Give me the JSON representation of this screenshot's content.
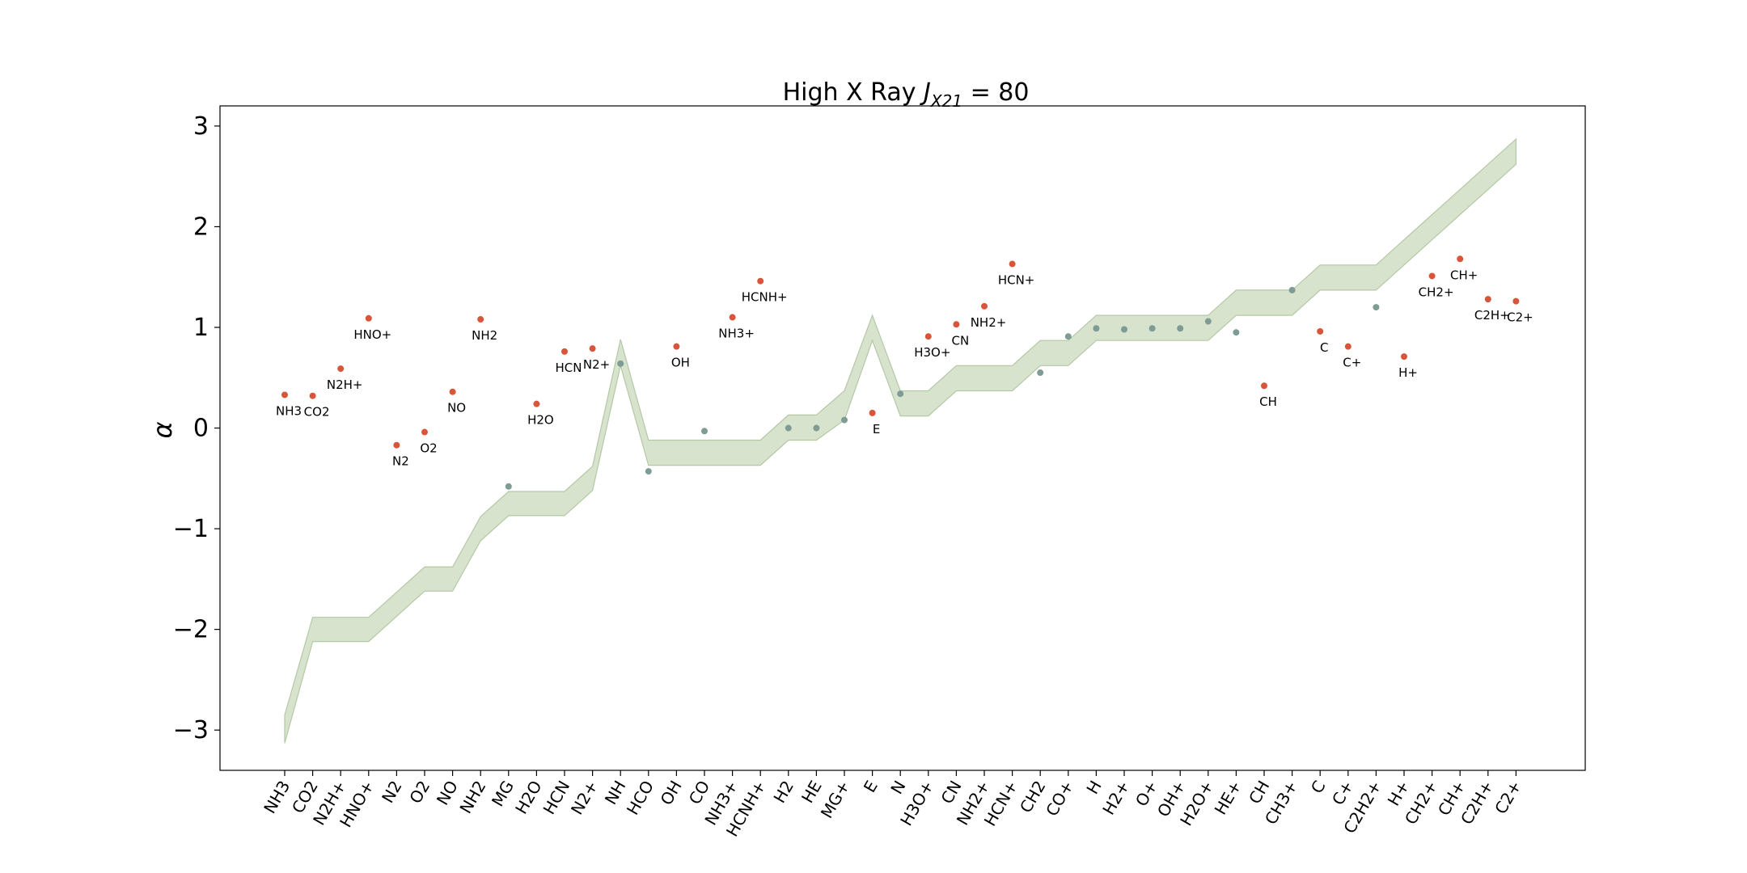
{
  "chart_data": {
    "type": "scatter",
    "title": "High X Ray ",
    "title_math": {
      "main": "J",
      "sub": "X21",
      "tail": " = 80"
    },
    "ylabel": "α",
    "xlabel": "",
    "ylim": [
      -3.4,
      3.2
    ],
    "yticks": [
      -3,
      -2,
      -1,
      0,
      1,
      2,
      3
    ],
    "grid": false,
    "legend": "none",
    "colors": {
      "band": "#d7e3cc",
      "band_edge": "#b5c8a6",
      "marked_point": "#d9553a",
      "plain_point": "#7e9c95",
      "axis": "#000000"
    },
    "categories": [
      "NH3",
      "CO2",
      "N2H+",
      "HNO+",
      "N2",
      "O2",
      "NO",
      "NH2",
      "MG",
      "H2O",
      "HCN",
      "N2+",
      "NH",
      "HCO",
      "OH",
      "CO",
      "NH3+",
      "HCNH+",
      "H2",
      "HE",
      "MG+",
      "E",
      "N",
      "H3O+",
      "CN",
      "NH2+",
      "HCN+",
      "CH2",
      "CO+",
      "H",
      "H2+",
      "O+",
      "OH+",
      "H2O+",
      "HE+",
      "CH",
      "CH3+",
      "C",
      "C+",
      "C2H2+",
      "H+",
      "CH2+",
      "CH+",
      "C2H+",
      "C2+"
    ],
    "band": {
      "upper": [
        -2.85,
        -1.88,
        -1.88,
        -1.88,
        -1.63,
        -1.38,
        -1.38,
        -0.88,
        -0.63,
        -0.63,
        -0.63,
        -0.38,
        0.88,
        -0.12,
        -0.12,
        -0.12,
        -0.12,
        -0.12,
        0.13,
        0.13,
        0.37,
        1.12,
        0.37,
        0.37,
        0.62,
        0.62,
        0.62,
        0.87,
        0.87,
        1.12,
        1.12,
        1.12,
        1.12,
        1.12,
        1.37,
        1.37,
        1.37,
        1.62,
        1.62,
        1.62,
        1.87,
        2.12,
        2.37,
        2.62,
        2.87
      ],
      "lower": [
        -3.13,
        -2.12,
        -2.12,
        -2.12,
        -1.87,
        -1.62,
        -1.62,
        -1.12,
        -0.87,
        -0.87,
        -0.87,
        -0.62,
        0.62,
        -0.37,
        -0.37,
        -0.37,
        -0.37,
        -0.37,
        -0.12,
        -0.12,
        0.08,
        0.87,
        0.12,
        0.12,
        0.37,
        0.37,
        0.37,
        0.62,
        0.62,
        0.87,
        0.87,
        0.87,
        0.87,
        0.87,
        1.12,
        1.12,
        1.12,
        1.37,
        1.37,
        1.37,
        1.62,
        1.87,
        2.12,
        2.37,
        2.62
      ]
    },
    "points": [
      {
        "name": "NH3",
        "y": 0.33,
        "labeled": true,
        "label": "NH3"
      },
      {
        "name": "CO2",
        "y": 0.32,
        "labeled": true,
        "label": "CO2"
      },
      {
        "name": "N2H+",
        "y": 0.59,
        "labeled": true,
        "label": "N2H+"
      },
      {
        "name": "HNO+",
        "y": 1.09,
        "labeled": true,
        "label": "HNO+"
      },
      {
        "name": "N2",
        "y": -0.17,
        "labeled": true,
        "label": "N2"
      },
      {
        "name": "O2",
        "y": -0.04,
        "labeled": true,
        "label": "O2"
      },
      {
        "name": "NO",
        "y": 0.36,
        "labeled": true,
        "label": "NO"
      },
      {
        "name": "NH2",
        "y": 1.08,
        "labeled": true,
        "label": "NH2"
      },
      {
        "name": "MG",
        "y": -0.58,
        "labeled": false,
        "label": ""
      },
      {
        "name": "H2O",
        "y": 0.24,
        "labeled": true,
        "label": "H2O"
      },
      {
        "name": "HCN",
        "y": 0.76,
        "labeled": true,
        "label": "HCN"
      },
      {
        "name": "N2+",
        "y": 0.79,
        "labeled": true,
        "label": "N2+"
      },
      {
        "name": "NH",
        "y": 0.64,
        "labeled": false,
        "label": ""
      },
      {
        "name": "HCO",
        "y": -0.43,
        "labeled": false,
        "label": ""
      },
      {
        "name": "OH",
        "y": 0.81,
        "labeled": true,
        "label": "OH"
      },
      {
        "name": "CO",
        "y": -0.03,
        "labeled": false,
        "label": ""
      },
      {
        "name": "NH3+",
        "y": 1.1,
        "labeled": true,
        "label": "NH3+"
      },
      {
        "name": "HCNH+",
        "y": 1.46,
        "labeled": true,
        "label": "HCNH+"
      },
      {
        "name": "H2",
        "y": 0.0,
        "labeled": false,
        "label": ""
      },
      {
        "name": "HE",
        "y": 0.0,
        "labeled": false,
        "label": ""
      },
      {
        "name": "MG+",
        "y": 0.08,
        "labeled": false,
        "label": ""
      },
      {
        "name": "E",
        "y": 0.15,
        "labeled": true,
        "label": "E"
      },
      {
        "name": "N",
        "y": 0.34,
        "labeled": false,
        "label": ""
      },
      {
        "name": "H3O+",
        "y": 0.91,
        "labeled": true,
        "label": "H3O+"
      },
      {
        "name": "CN",
        "y": 1.03,
        "labeled": true,
        "label": "CN"
      },
      {
        "name": "NH2+",
        "y": 1.21,
        "labeled": true,
        "label": "NH2+"
      },
      {
        "name": "HCN+",
        "y": 1.63,
        "labeled": true,
        "label": "HCN+"
      },
      {
        "name": "CH2",
        "y": 0.55,
        "labeled": false,
        "label": ""
      },
      {
        "name": "CO+",
        "y": 0.91,
        "labeled": false,
        "label": ""
      },
      {
        "name": "H",
        "y": 0.99,
        "labeled": false,
        "label": ""
      },
      {
        "name": "H2+",
        "y": 0.98,
        "labeled": false,
        "label": ""
      },
      {
        "name": "O+",
        "y": 0.99,
        "labeled": false,
        "label": ""
      },
      {
        "name": "OH+",
        "y": 0.99,
        "labeled": false,
        "label": ""
      },
      {
        "name": "H2O+",
        "y": 1.06,
        "labeled": false,
        "label": ""
      },
      {
        "name": "HE+",
        "y": 0.95,
        "labeled": false,
        "label": ""
      },
      {
        "name": "CH",
        "y": 0.42,
        "labeled": true,
        "label": "CH"
      },
      {
        "name": "CH3+",
        "y": 1.37,
        "labeled": false,
        "label": ""
      },
      {
        "name": "C",
        "y": 0.96,
        "labeled": true,
        "label": "C"
      },
      {
        "name": "C+",
        "y": 0.81,
        "labeled": true,
        "label": "C+"
      },
      {
        "name": "C2H2+",
        "y": 1.2,
        "labeled": false,
        "label": ""
      },
      {
        "name": "H+",
        "y": 0.71,
        "labeled": true,
        "label": "H+"
      },
      {
        "name": "CH2+",
        "y": 1.51,
        "labeled": true,
        "label": "CH2+"
      },
      {
        "name": "CH+",
        "y": 1.68,
        "labeled": true,
        "label": "CH+"
      },
      {
        "name": "C2H+",
        "y": 1.28,
        "labeled": true,
        "label": "C2H+"
      },
      {
        "name": "C2+",
        "y": 1.26,
        "labeled": true,
        "label": "C2+"
      }
    ]
  }
}
